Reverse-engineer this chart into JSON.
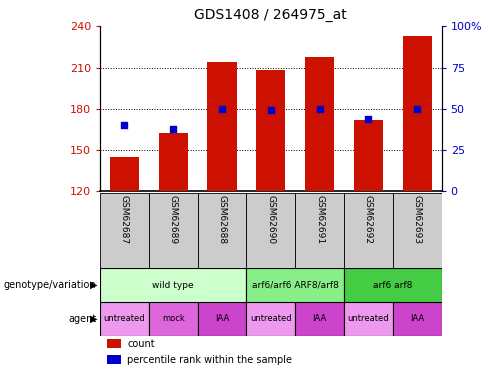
{
  "title": "GDS1408 / 264975_at",
  "samples": [
    "GSM62687",
    "GSM62689",
    "GSM62688",
    "GSM62690",
    "GSM62691",
    "GSM62692",
    "GSM62693"
  ],
  "bar_values": [
    145,
    162,
    214,
    208,
    218,
    172,
    233
  ],
  "percentile_values": [
    40,
    38,
    50,
    49,
    50,
    44,
    50
  ],
  "ylim_left": [
    120,
    240
  ],
  "ylim_right": [
    0,
    100
  ],
  "yticks_left": [
    120,
    150,
    180,
    210,
    240
  ],
  "yticks_right": [
    0,
    25,
    50,
    75,
    100
  ],
  "bar_color": "#cc1100",
  "dot_color": "#0000cc",
  "genotype_groups": [
    {
      "label": "wild type",
      "span": [
        0,
        3
      ],
      "color": "#ccffcc"
    },
    {
      "label": "arf6/arf6 ARF8/arf8",
      "span": [
        3,
        5
      ],
      "color": "#88ee88"
    },
    {
      "label": "arf6 arf8",
      "span": [
        5,
        7
      ],
      "color": "#44cc44"
    }
  ],
  "agent_groups": [
    {
      "label": "untreated",
      "span": [
        0,
        1
      ],
      "color": "#ee99ee"
    },
    {
      "label": "mock",
      "span": [
        1,
        2
      ],
      "color": "#dd66dd"
    },
    {
      "label": "IAA",
      "span": [
        2,
        3
      ],
      "color": "#cc44cc"
    },
    {
      "label": "untreated",
      "span": [
        3,
        4
      ],
      "color": "#ee99ee"
    },
    {
      "label": "IAA",
      "span": [
        4,
        5
      ],
      "color": "#cc44cc"
    },
    {
      "label": "untreated",
      "span": [
        5,
        6
      ],
      "color": "#ee99ee"
    },
    {
      "label": "IAA",
      "span": [
        6,
        7
      ],
      "color": "#cc44cc"
    }
  ],
  "ylabel_left_color": "#cc1100",
  "ylabel_right_color": "#0000cc",
  "title_fontsize": 10,
  "sample_label_fontsize": 6.5,
  "annot_fontsize": 7,
  "legend_fontsize": 7,
  "bar_label_color": "#888888",
  "sample_bg_color": "#cccccc"
}
